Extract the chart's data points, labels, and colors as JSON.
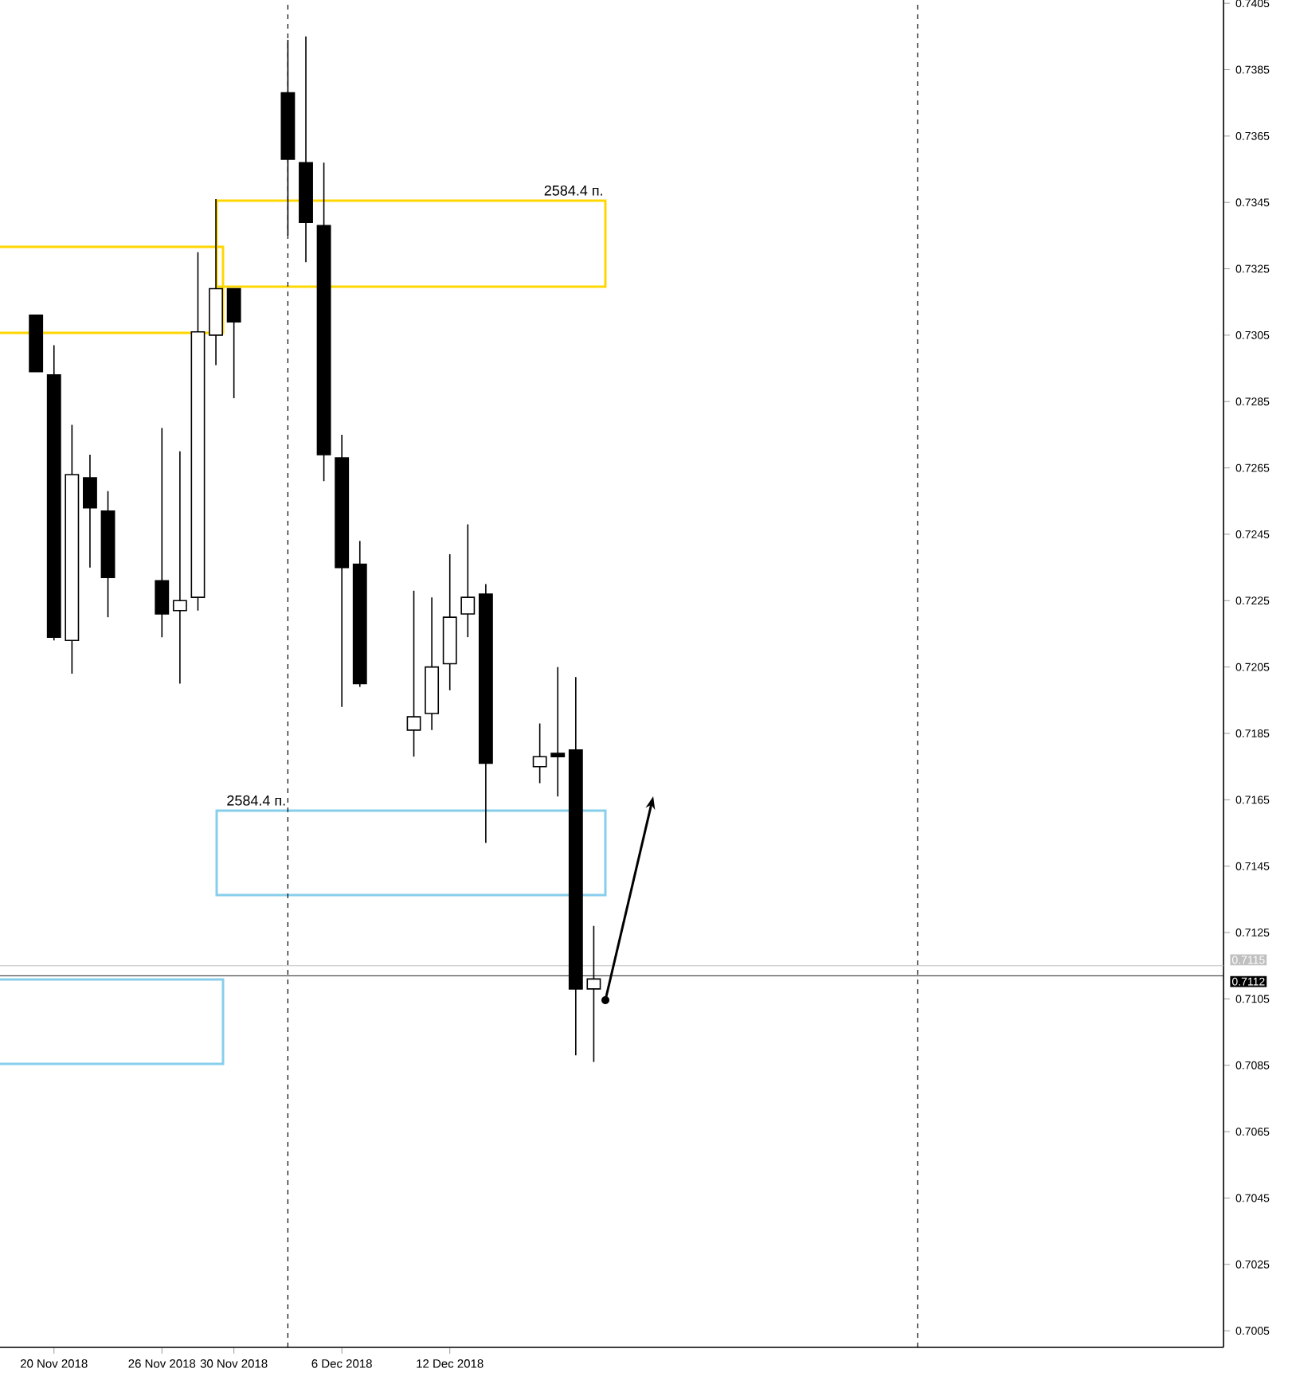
{
  "chart_data": {
    "type": "candlestick",
    "x": [
      "2018-11-19",
      "2018-11-20",
      "2018-11-21",
      "2018-11-22",
      "2018-11-23",
      "2018-11-26",
      "2018-11-27",
      "2018-11-28",
      "2018-11-29",
      "2018-11-30",
      "2018-12-03",
      "2018-12-04",
      "2018-12-05",
      "2018-12-06",
      "2018-12-07",
      "2018-12-10",
      "2018-12-11",
      "2018-12-12",
      "2018-12-13",
      "2018-12-14",
      "2018-12-17",
      "2018-12-18",
      "2018-12-19",
      "2018-12-20"
    ],
    "ohlc": [
      [
        0.7311,
        0.7311,
        0.7294,
        0.7294
      ],
      [
        0.7293,
        0.7302,
        0.7213,
        0.7214
      ],
      [
        0.7213,
        0.7278,
        0.7203,
        0.7263
      ],
      [
        0.7262,
        0.7269,
        0.7235,
        0.7253
      ],
      [
        0.7252,
        0.7258,
        0.722,
        0.7232
      ],
      [
        0.7231,
        0.7277,
        0.7214,
        0.7221
      ],
      [
        0.7222,
        0.727,
        0.72,
        0.7225
      ],
      [
        0.7226,
        0.733,
        0.7222,
        0.7306
      ],
      [
        0.7305,
        0.7346,
        0.7296,
        0.7319
      ],
      [
        0.7319,
        0.7319,
        0.7286,
        0.7309
      ],
      [
        0.7378,
        0.7394,
        0.7335,
        0.7358
      ],
      [
        0.7357,
        0.7395,
        0.7327,
        0.7339
      ],
      [
        0.7338,
        0.7357,
        0.7261,
        0.7269
      ],
      [
        0.7268,
        0.7275,
        0.7193,
        0.7235
      ],
      [
        0.7236,
        0.7243,
        0.7199,
        0.72
      ],
      [
        0.7186,
        0.7228,
        0.7178,
        0.719
      ],
      [
        0.7191,
        0.7226,
        0.7186,
        0.7205
      ],
      [
        0.7206,
        0.7239,
        0.7198,
        0.722
      ],
      [
        0.7221,
        0.7248,
        0.7214,
        0.7226
      ],
      [
        0.7227,
        0.723,
        0.7152,
        0.7176
      ],
      [
        0.7175,
        0.7188,
        0.717,
        0.7178
      ],
      [
        0.7179,
        0.7205,
        0.7166,
        0.7178
      ],
      [
        0.718,
        0.7202,
        0.7088,
        0.7108
      ],
      [
        0.7108,
        0.7127,
        0.7086,
        0.7111
      ]
    ],
    "xlim": [
      "2018-11-17",
      "2019-01-24"
    ],
    "xticks": [
      {
        "value": "2018-11-20",
        "label": "20 Nov 2018"
      },
      {
        "value": "2018-11-26",
        "label": "26 Nov 2018"
      },
      {
        "value": "2018-11-30",
        "label": "30 Nov 2018"
      },
      {
        "value": "2018-12-06",
        "label": "6 Dec 2018"
      },
      {
        "value": "2018-12-12",
        "label": "12 Dec 2018"
      }
    ],
    "ylim": [
      0.7,
      0.7406
    ],
    "yticks": [
      0.7005,
      0.7025,
      0.7045,
      0.7065,
      0.7085,
      0.7105,
      0.7125,
      0.7145,
      0.7165,
      0.7185,
      0.7205,
      0.7225,
      0.7245,
      0.7265,
      0.7285,
      0.7305,
      0.7325,
      0.7345,
      0.7365,
      0.7385,
      0.7405
    ],
    "ref_lines": [
      {
        "axis": "x",
        "value": "2018-12-03",
        "line_style": "dashed",
        "color": "#000000"
      },
      {
        "axis": "x",
        "value": "2019-01-07",
        "line_style": "dashed",
        "color": "#000000"
      },
      {
        "axis": "y",
        "value": 0.7115,
        "label": "0.7115",
        "color": "#c0c0c0",
        "line_style": "solid"
      },
      {
        "axis": "y",
        "value": 0.7112,
        "label": "0.7112",
        "color": "#000000",
        "line_style": "solid"
      }
    ],
    "annotations": [
      "2584.4 п.",
      "2584.4 п."
    ],
    "grid": false
  }
}
